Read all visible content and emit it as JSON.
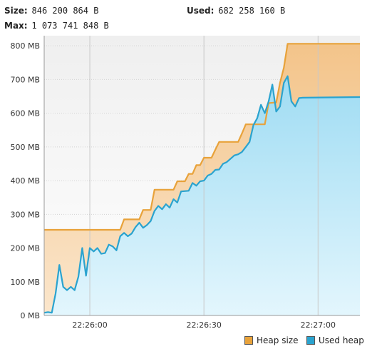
{
  "stats": {
    "size_label": "Size:",
    "size_value": "846 200 864 B",
    "used_label": "Used:",
    "used_value": "682 258 160 B",
    "max_label": "Max:",
    "max_value": "1 073 741 848 B"
  },
  "colors": {
    "heap_line": "#e8a23a",
    "used_line": "#2aa3cf",
    "heap_fill_top": "#f3c48a",
    "heap_fill_bottom": "#fbe6cc",
    "used_fill_top": "#9fdcf3",
    "used_fill_bottom": "#e3f6fd",
    "plot_top": "#efefef",
    "plot_bottom": "#ffffff"
  },
  "chart_data": {
    "type": "area",
    "y_unit": "MB",
    "ylim": [
      0,
      830
    ],
    "yticks": [
      0,
      100,
      200,
      300,
      400,
      500,
      600,
      700,
      800
    ],
    "ytick_labels": [
      "0 MB",
      "100 MB",
      "200 MB",
      "300 MB",
      "400 MB",
      "500 MB",
      "600 MB",
      "700 MB",
      "800 MB"
    ],
    "xlim": [
      "22:25:48",
      "22:27:11"
    ],
    "xticks": [
      "22:26:00",
      "22:26:30",
      "22:27:00"
    ],
    "grid": true,
    "legend_position": "bottom-right",
    "series": [
      {
        "name": "Heap size",
        "color": "#e8a23a",
        "points": [
          [
            "22:25:48",
            254
          ],
          [
            "22:26:08",
            254
          ],
          [
            "22:26:09",
            285
          ],
          [
            "22:26:13",
            285
          ],
          [
            "22:26:14",
            313
          ],
          [
            "22:26:16",
            313
          ],
          [
            "22:26:17",
            373
          ],
          [
            "22:26:22",
            373
          ],
          [
            "22:26:23",
            398
          ],
          [
            "22:26:25",
            398
          ],
          [
            "22:26:26",
            420
          ],
          [
            "22:26:27",
            420
          ],
          [
            "22:26:28",
            446
          ],
          [
            "22:26:29",
            446
          ],
          [
            "22:26:30",
            468
          ],
          [
            "22:26:32",
            468
          ],
          [
            "22:26:33",
            492
          ],
          [
            "22:26:34",
            515
          ],
          [
            "22:26:39",
            515
          ],
          [
            "22:26:40",
            540
          ],
          [
            "22:26:41",
            567
          ],
          [
            "22:26:46",
            567
          ],
          [
            "22:26:47",
            630
          ],
          [
            "22:26:49",
            632
          ],
          [
            "22:26:50",
            690
          ],
          [
            "22:26:51",
            735
          ],
          [
            "22:26:52",
            806
          ],
          [
            "22:27:11",
            806
          ]
        ]
      },
      {
        "name": "Used heap",
        "color": "#2aa3cf",
        "points": [
          [
            "22:25:48",
            8
          ],
          [
            "22:25:49",
            10
          ],
          [
            "22:25:50",
            8
          ],
          [
            "22:25:51",
            65
          ],
          [
            "22:25:52",
            150
          ],
          [
            "22:25:53",
            85
          ],
          [
            "22:25:54",
            75
          ],
          [
            "22:25:55",
            85
          ],
          [
            "22:25:56",
            75
          ],
          [
            "22:25:57",
            115
          ],
          [
            "22:25:58",
            200
          ],
          [
            "22:25:59",
            118
          ],
          [
            "22:26:00",
            200
          ],
          [
            "22:26:01",
            190
          ],
          [
            "22:26:02",
            200
          ],
          [
            "22:26:03",
            183
          ],
          [
            "22:26:04",
            185
          ],
          [
            "22:26:05",
            210
          ],
          [
            "22:26:06",
            205
          ],
          [
            "22:26:07",
            193
          ],
          [
            "22:26:08",
            235
          ],
          [
            "22:26:09",
            245
          ],
          [
            "22:26:10",
            235
          ],
          [
            "22:26:11",
            243
          ],
          [
            "22:26:12",
            262
          ],
          [
            "22:26:13",
            275
          ],
          [
            "22:26:14",
            260
          ],
          [
            "22:26:15",
            268
          ],
          [
            "22:26:16",
            280
          ],
          [
            "22:26:17",
            310
          ],
          [
            "22:26:18",
            325
          ],
          [
            "22:26:19",
            315
          ],
          [
            "22:26:20",
            330
          ],
          [
            "22:26:21",
            320
          ],
          [
            "22:26:22",
            345
          ],
          [
            "22:26:23",
            335
          ],
          [
            "22:26:24",
            368
          ],
          [
            "22:26:26",
            370
          ],
          [
            "22:26:27",
            393
          ],
          [
            "22:26:28",
            385
          ],
          [
            "22:26:29",
            398
          ],
          [
            "22:26:30",
            400
          ],
          [
            "22:26:31",
            415
          ],
          [
            "22:26:32",
            420
          ],
          [
            "22:26:33",
            432
          ],
          [
            "22:26:34",
            433
          ],
          [
            "22:26:35",
            450
          ],
          [
            "22:26:36",
            455
          ],
          [
            "22:26:37",
            465
          ],
          [
            "22:26:38",
            475
          ],
          [
            "22:26:39",
            478
          ],
          [
            "22:26:40",
            485
          ],
          [
            "22:26:41",
            500
          ],
          [
            "22:26:42",
            515
          ],
          [
            "22:26:43",
            565
          ],
          [
            "22:26:44",
            585
          ],
          [
            "22:26:45",
            625
          ],
          [
            "22:26:46",
            600
          ],
          [
            "22:26:47",
            635
          ],
          [
            "22:26:48",
            685
          ],
          [
            "22:26:49",
            605
          ],
          [
            "22:26:50",
            620
          ],
          [
            "22:26:51",
            690
          ],
          [
            "22:26:52",
            710
          ],
          [
            "22:26:53",
            635
          ],
          [
            "22:26:54",
            620
          ],
          [
            "22:26:55",
            645
          ],
          [
            "22:26:56",
            646
          ],
          [
            "22:27:11",
            648
          ]
        ]
      }
    ]
  }
}
